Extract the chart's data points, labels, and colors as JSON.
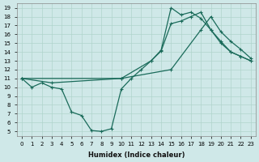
{
  "xlabel": "Humidex (Indice chaleur)",
  "ylabel": "",
  "bg_color": "#cfe8e8",
  "grid_color": "#b0d4cc",
  "line_color": "#1a6b5a",
  "xlim": [
    -0.5,
    23.5
  ],
  "ylim": [
    4.5,
    19.5
  ],
  "xticks": [
    0,
    1,
    2,
    3,
    4,
    5,
    6,
    7,
    8,
    9,
    10,
    11,
    12,
    13,
    14,
    15,
    16,
    17,
    18,
    19,
    20,
    21,
    22,
    23
  ],
  "yticks": [
    5,
    6,
    7,
    8,
    9,
    10,
    11,
    12,
    13,
    14,
    15,
    16,
    17,
    18,
    19
  ],
  "line1_x": [
    0,
    1,
    2,
    3,
    4,
    5,
    6,
    7,
    8,
    9,
    10,
    11,
    12,
    13,
    14,
    15,
    16,
    17,
    18,
    19,
    20,
    21,
    22,
    23
  ],
  "line1_y": [
    11,
    10,
    10.5,
    10,
    9.8,
    7.2,
    6.8,
    5.1,
    5.0,
    5.3,
    9.8,
    11,
    12,
    13,
    14.1,
    17.2,
    17.5,
    18.0,
    18.5,
    16.5,
    15.0,
    14.0,
    13.5,
    13.0
  ],
  "line2_x": [
    0,
    3,
    10,
    13,
    14,
    15,
    16,
    17,
    18,
    19,
    20,
    21,
    22,
    23
  ],
  "line2_y": [
    11,
    10.5,
    11,
    13.0,
    14.2,
    19.0,
    18.2,
    18.5,
    17.8,
    16.5,
    15.2,
    14.0,
    13.5,
    13.0
  ],
  "line3_x": [
    0,
    10,
    15,
    18,
    19,
    20,
    21,
    22,
    23
  ],
  "line3_y": [
    11,
    11.0,
    12.0,
    16.5,
    18.0,
    16.3,
    15.2,
    14.3,
    13.3
  ]
}
